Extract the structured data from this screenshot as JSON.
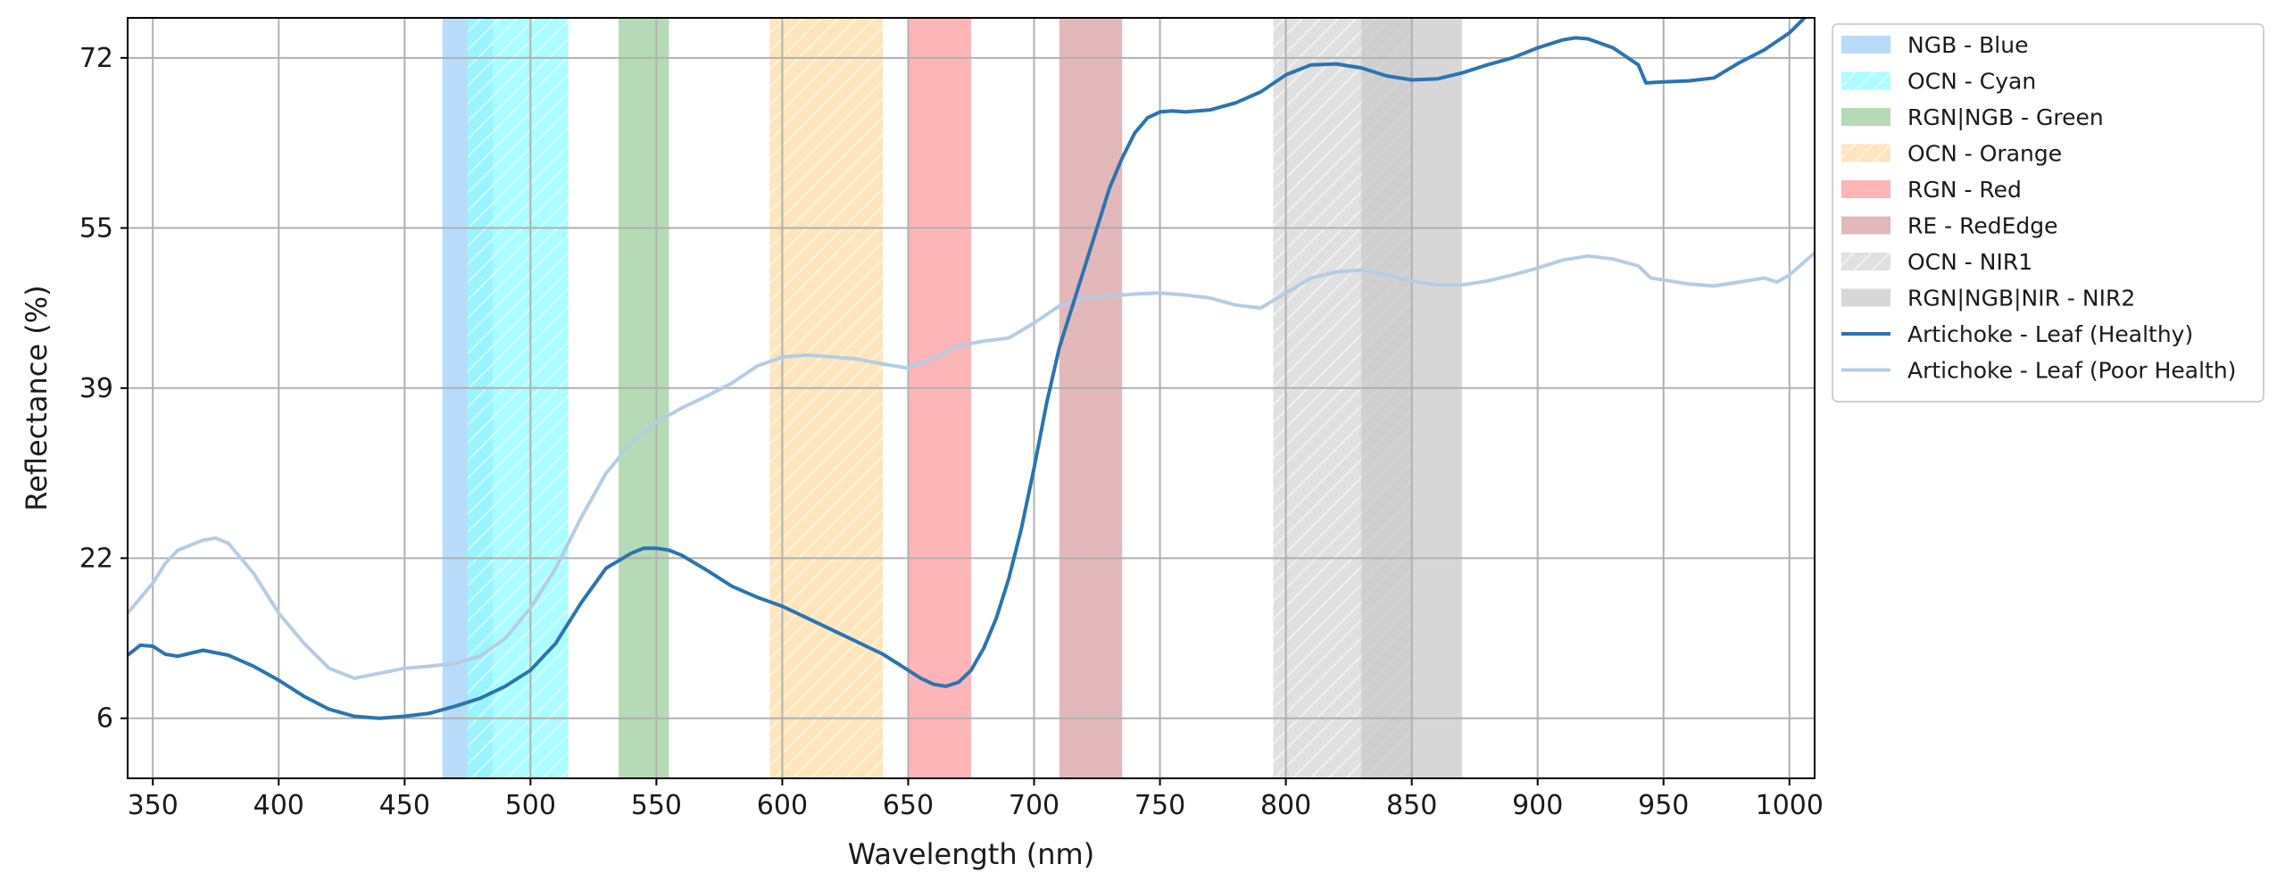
{
  "chart_data": {
    "type": "line",
    "title": "",
    "xlabel": "Wavelength (nm)",
    "ylabel": "Reflectance (%)",
    "xlim": [
      340,
      1010
    ],
    "ylim": [
      0,
      76
    ],
    "xticks": [
      350,
      400,
      450,
      500,
      550,
      600,
      650,
      700,
      750,
      800,
      850,
      900,
      950,
      1000
    ],
    "yticks": [
      6,
      22,
      39,
      55,
      72
    ],
    "grid": true,
    "legend_position": "outside-right",
    "bands": [
      {
        "name": "NGB - Blue",
        "range": [
          465,
          485
        ],
        "color": "#9fcff7",
        "hatch": false
      },
      {
        "name": "OCN - Cyan",
        "range": [
          475,
          515
        ],
        "color": "#8ffcff",
        "hatch": true
      },
      {
        "name": "RGN|NGB - Green",
        "range": [
          535,
          555
        ],
        "color": "#9ccd9c",
        "hatch": false
      },
      {
        "name": "OCN - Orange",
        "range": [
          595,
          640
        ],
        "color": "#fddca6",
        "hatch": true
      },
      {
        "name": "RGN - Red",
        "range": [
          650,
          675
        ],
        "color": "#fc9ca0",
        "hatch": false
      },
      {
        "name": "RE - RedEdge",
        "range": [
          710,
          735
        ],
        "color": "#d9a0a3",
        "hatch": false
      },
      {
        "name": "OCN - NIR1",
        "range": [
          795,
          850
        ],
        "color": "#d6d6d6",
        "hatch": true
      },
      {
        "name": "RGN|NGB|NIR - NIR2",
        "range": [
          830,
          870
        ],
        "color": "#c9c9c9",
        "hatch": false
      }
    ],
    "series": [
      {
        "name": "Artichoke - Leaf (Healthy)",
        "color": "#2b74b0",
        "x": [
          340,
          345,
          350,
          355,
          360,
          370,
          380,
          390,
          400,
          410,
          420,
          430,
          440,
          450,
          460,
          470,
          480,
          490,
          500,
          510,
          520,
          530,
          540,
          545,
          550,
          555,
          560,
          570,
          580,
          590,
          600,
          610,
          620,
          630,
          640,
          650,
          655,
          660,
          665,
          670,
          675,
          680,
          685,
          690,
          695,
          700,
          705,
          710,
          715,
          720,
          725,
          730,
          735,
          740,
          745,
          750,
          755,
          760,
          770,
          780,
          790,
          800,
          810,
          820,
          830,
          840,
          850,
          860,
          870,
          880,
          890,
          900,
          910,
          915,
          920,
          930,
          940,
          943,
          950,
          960,
          970,
          980,
          990,
          1000,
          1010
        ],
        "values": [
          12.3,
          13.3,
          13.2,
          12.4,
          12.2,
          12.8,
          12.3,
          11.2,
          9.8,
          8.2,
          6.9,
          6.2,
          6.0,
          6.2,
          6.5,
          7.2,
          8.0,
          9.2,
          10.8,
          13.5,
          17.5,
          21.0,
          22.5,
          23.0,
          23.0,
          22.8,
          22.3,
          20.8,
          19.2,
          18.1,
          17.2,
          16.0,
          14.8,
          13.6,
          12.4,
          10.8,
          10.0,
          9.4,
          9.2,
          9.6,
          10.8,
          13.0,
          16.0,
          20.0,
          25.0,
          31.0,
          37.5,
          43.0,
          47.0,
          51.0,
          55.0,
          59.0,
          62.0,
          64.5,
          66.0,
          66.6,
          66.7,
          66.6,
          66.8,
          67.5,
          68.6,
          70.3,
          71.3,
          71.4,
          71.0,
          70.2,
          69.8,
          69.9,
          70.5,
          71.3,
          72.0,
          73.0,
          73.8,
          74.0,
          73.9,
          73.0,
          71.3,
          69.5,
          69.6,
          69.7,
          70.0,
          71.5,
          72.8,
          74.5,
          77.0
        ]
      },
      {
        "name": "Artichoke - Leaf (Poor Health)",
        "color": "#b5cde3",
        "x": [
          340,
          345,
          350,
          355,
          360,
          370,
          375,
          380,
          390,
          400,
          410,
          420,
          430,
          440,
          450,
          460,
          470,
          480,
          490,
          500,
          510,
          520,
          530,
          540,
          550,
          560,
          570,
          580,
          590,
          600,
          610,
          620,
          630,
          640,
          650,
          660,
          670,
          680,
          690,
          700,
          710,
          720,
          730,
          740,
          750,
          760,
          770,
          780,
          790,
          800,
          810,
          820,
          830,
          840,
          850,
          860,
          870,
          880,
          890,
          900,
          910,
          920,
          930,
          940,
          945,
          950,
          960,
          970,
          980,
          990,
          995,
          1000,
          1010
        ],
        "values": [
          16.5,
          18.0,
          19.5,
          21.5,
          22.8,
          23.8,
          24.0,
          23.5,
          20.5,
          16.5,
          13.5,
          11.0,
          10.0,
          10.5,
          11.0,
          11.2,
          11.5,
          12.2,
          14.0,
          17.0,
          21.0,
          26.0,
          30.5,
          33.5,
          35.6,
          37.0,
          38.2,
          39.5,
          41.2,
          42.1,
          42.3,
          42.1,
          41.9,
          41.4,
          41.0,
          42.0,
          43.2,
          43.7,
          44.0,
          45.5,
          47.2,
          48.0,
          48.2,
          48.4,
          48.5,
          48.3,
          48.0,
          47.3,
          47.0,
          48.5,
          50.0,
          50.6,
          50.8,
          50.3,
          49.7,
          49.3,
          49.3,
          49.7,
          50.3,
          51.0,
          51.8,
          52.2,
          51.9,
          51.2,
          50.0,
          49.8,
          49.4,
          49.2,
          49.6,
          50.0,
          49.6,
          50.3,
          52.5
        ]
      }
    ]
  }
}
